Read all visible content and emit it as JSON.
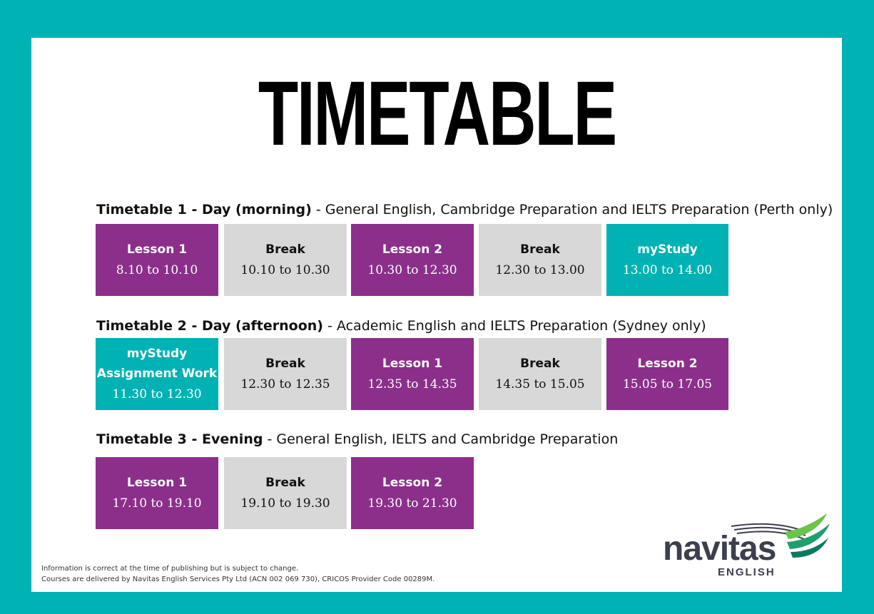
{
  "title": "TIMETABLE",
  "timetables": [
    {
      "label": "Timetable 1",
      "sep": " - ",
      "period": "Day (morning)",
      "desc": " - General English, Cambridge Preparation and IELTS Preparation (Perth only)",
      "cells": [
        {
          "label": "Lesson 1",
          "time": "8.10 to 10.10",
          "kind": "lesson"
        },
        {
          "label": "Break",
          "time": "10.10 to 10.30",
          "kind": "break"
        },
        {
          "label": "Lesson 2",
          "time": "10.30 to 12.30",
          "kind": "lesson"
        },
        {
          "label": "Break",
          "time": "12.30 to 13.00",
          "kind": "break"
        },
        {
          "label": "myStudy",
          "time": "13.00 to 14.00",
          "kind": "study"
        }
      ]
    },
    {
      "label": "Timetable 2",
      "sep": " - ",
      "period": "Day (afternoon)",
      "desc": " - Academic English and IELTS Preparation (Sydney only)",
      "cells": [
        {
          "label": "myStudy",
          "label2": "Assignment Work",
          "time": "11.30 to 12.30",
          "kind": "study"
        },
        {
          "label": "Break",
          "time": "12.30 to 12.35",
          "kind": "break"
        },
        {
          "label": "Lesson 1",
          "time": "12.35 to 14.35",
          "kind": "lesson"
        },
        {
          "label": "Break",
          "time": "14.35 to 15.05",
          "kind": "break"
        },
        {
          "label": "Lesson 2",
          "time": "15.05 to 17.05",
          "kind": "lesson"
        }
      ]
    },
    {
      "label": "Timetable 3",
      "sep": " - ",
      "period": "Evening",
      "desc": " - General English, IELTS and Cambridge Preparation",
      "cells": [
        {
          "label": "Lesson 1",
          "time": "17.10 to 19.10",
          "kind": "lesson"
        },
        {
          "label": "Break",
          "time": "19.10 to 19.30",
          "kind": "break"
        },
        {
          "label": "Lesson 2",
          "time": "19.30 to 21.30",
          "kind": "lesson"
        }
      ]
    }
  ],
  "footer": {
    "line1": "Information is correct at the time of publishing but is subject to change.",
    "line2": "Courses are delivered by Navitas English Services Pty Ltd (ACN 002 069 730), CRICOS Provider Code 00289M."
  },
  "logo": {
    "name": "navitas",
    "sub": "ENGLISH"
  },
  "colors": {
    "teal": "#00b2b4",
    "purple": "#8b2f8b",
    "grey": "#d8d8d8"
  }
}
